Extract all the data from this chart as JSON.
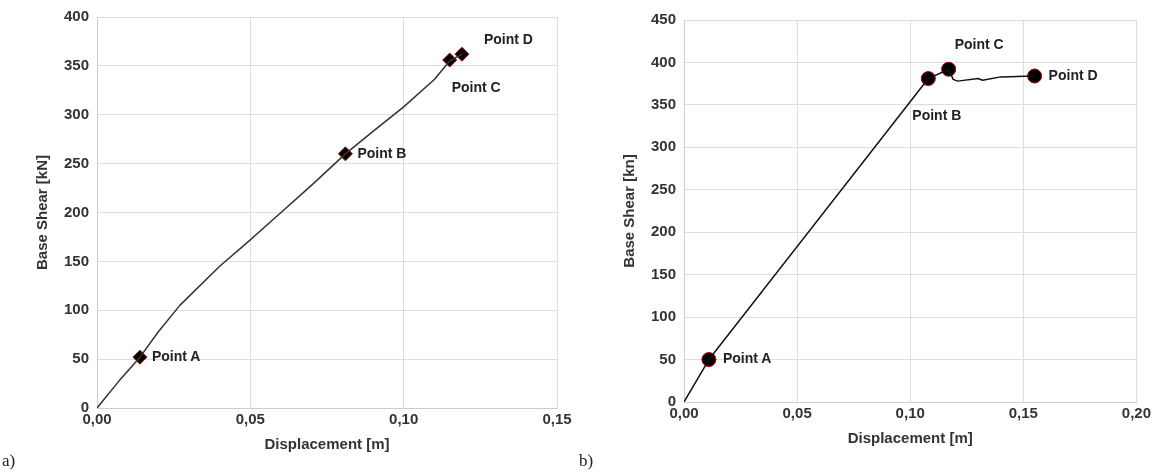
{
  "chart_data": [
    {
      "type": "line",
      "xlabel": "Displacement [m]",
      "ylabel": "Base Shear [kN]",
      "xlim": [
        0,
        0.15
      ],
      "ylim": [
        0,
        400
      ],
      "xticks": [
        {
          "value": 0,
          "label": "0,00"
        },
        {
          "value": 0.05,
          "label": "0,05"
        },
        {
          "value": 0.1,
          "label": "0,10"
        },
        {
          "value": 0.15,
          "label": "0,15"
        }
      ],
      "yticks": [
        0,
        50,
        100,
        150,
        200,
        250,
        300,
        350,
        400
      ],
      "grid": true,
      "series": [
        {
          "color": "#333333",
          "x": [
            0,
            0.007,
            0.014,
            0.02,
            0.027,
            0.04,
            0.05,
            0.06,
            0.07,
            0.081,
            0.09,
            0.1,
            0.11,
            0.115,
            0.119
          ],
          "values": [
            0,
            27,
            52,
            78,
            105,
            145,
            172,
            200,
            228,
            260,
            283,
            308,
            336,
            355,
            362
          ]
        },
        {
          "type": "scatter",
          "marker": "diamond",
          "color": "#000000",
          "x": [
            0.014,
            0.081,
            0.115,
            0.119
          ],
          "values": [
            52,
            260,
            356,
            362
          ]
        }
      ],
      "annotations": [
        {
          "text": "Point A",
          "x": 0.014,
          "y": 52
        },
        {
          "text": "Point B",
          "x": 0.081,
          "y": 260
        },
        {
          "text": "Point C",
          "x": 0.115,
          "y": 356
        },
        {
          "text": "Point D",
          "x": 0.119,
          "y": 362
        },
        "a)"
      ]
    },
    {
      "type": "line",
      "xlabel": "Displacement [m]",
      "ylabel": "Base Shear [kn]",
      "xlim": [
        0,
        0.2
      ],
      "ylim": [
        0,
        450
      ],
      "xticks": [
        {
          "value": 0,
          "label": "0,00"
        },
        {
          "value": 0.05,
          "label": "0,05"
        },
        {
          "value": 0.1,
          "label": "0,10"
        },
        {
          "value": 0.15,
          "label": "0,15"
        },
        {
          "value": 0.2,
          "label": "0,20"
        }
      ],
      "yticks": [
        0,
        50,
        100,
        150,
        200,
        250,
        300,
        350,
        400,
        450
      ],
      "grid": true,
      "series": [
        {
          "color": "#111111",
          "x": [
            0,
            0.011,
            0.108,
            0.117,
            0.119,
            0.121,
            0.13,
            0.132,
            0.14,
            0.155
          ],
          "values": [
            0,
            50,
            381,
            392,
            380,
            378,
            381,
            379,
            383,
            384
          ]
        },
        {
          "type": "scatter",
          "marker": "circle",
          "color": "#000000",
          "x": [
            0.011,
            0.108,
            0.117,
            0.155
          ],
          "values": [
            50,
            381,
            392,
            384
          ]
        }
      ],
      "annotations": [
        {
          "text": "Point A",
          "x": 0.011,
          "y": 50
        },
        {
          "text": "Point B",
          "x": 0.108,
          "y": 381
        },
        {
          "text": "Point C",
          "x": 0.117,
          "y": 392
        },
        {
          "text": "Point D",
          "x": 0.155,
          "y": 384
        },
        "b)"
      ]
    }
  ]
}
